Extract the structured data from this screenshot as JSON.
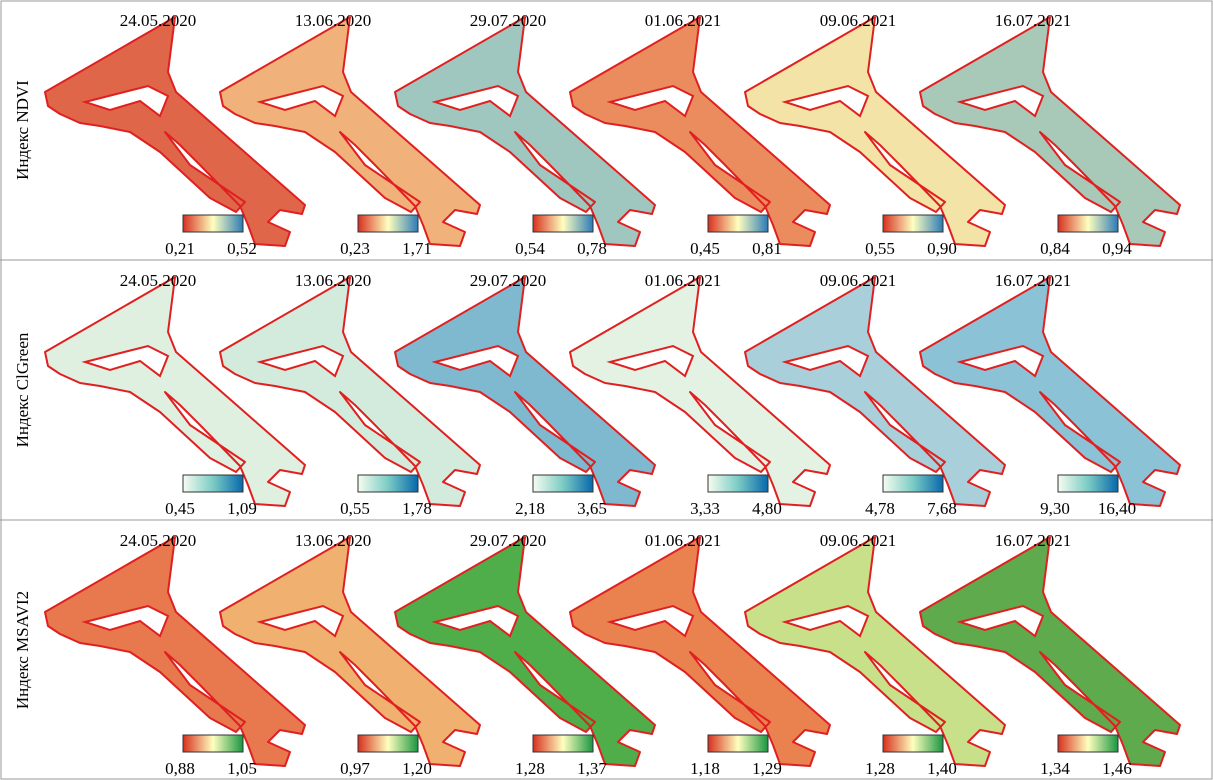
{
  "rows": [
    {
      "label": "Индекс NDVI",
      "panels": [
        {
          "date": "24.05.2020",
          "min": "0,21",
          "max": "0,52"
        },
        {
          "date": "13.06.2020",
          "min": "0,23",
          "max": "1,71"
        },
        {
          "date": "29.07.2020",
          "min": "0,54",
          "max": "0,78"
        },
        {
          "date": "01.06.2021",
          "min": "0,45",
          "max": "0,81"
        },
        {
          "date": "09.06.2021",
          "min": "0,55",
          "max": "0,90"
        },
        {
          "date": "16.07.2021",
          "min": "0,84",
          "max": "0,94"
        }
      ]
    },
    {
      "label": "Индекс ClGreen",
      "panels": [
        {
          "date": "24.05.2020",
          "min": "0,45",
          "max": "1,09"
        },
        {
          "date": "13.06.2020",
          "min": "0,55",
          "max": "1,78"
        },
        {
          "date": "29.07.2020",
          "min": "2,18",
          "max": "3,65"
        },
        {
          "date": "01.06.2021",
          "min": "3,33",
          "max": "4,80"
        },
        {
          "date": "09.06.2021",
          "min": "4,78",
          "max": "7,68"
        },
        {
          "date": "16.07.2021",
          "min": "9,30",
          "max": "16,40"
        }
      ]
    },
    {
      "label": "Индекс MSAVI2",
      "panels": [
        {
          "date": "24.05.2020",
          "min": "0,88",
          "max": "1,05"
        },
        {
          "date": "13.06.2020",
          "min": "0,97",
          "max": "1,20"
        },
        {
          "date": "29.07.2020",
          "min": "1,28",
          "max": "1,37"
        },
        {
          "date": "01.06.2021",
          "min": "1,18",
          "max": "1,29"
        },
        {
          "date": "09.06.2021",
          "min": "1,28",
          "max": "1,40"
        },
        {
          "date": "16.07.2021",
          "min": "1,34",
          "max": "1,46"
        }
      ]
    }
  ]
}
